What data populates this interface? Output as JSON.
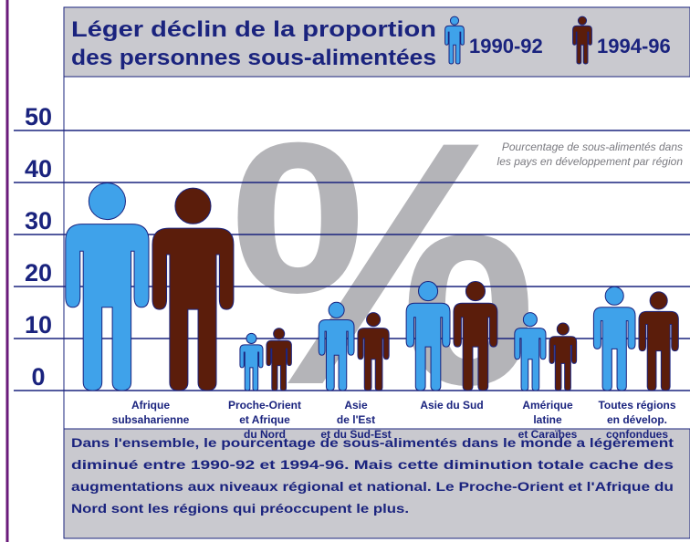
{
  "chart_data": {
    "type": "pictogram",
    "title_lines": [
      "Léger déclin de la proportion",
      "des personnes sous-alimentées"
    ],
    "watermark": "%",
    "annotation_lines": [
      "Pourcentage de sous-alimentés dans",
      "les pays en développement par région"
    ],
    "categories": [
      [
        "Afrique",
        "subsaharienne"
      ],
      [
        "Proche-Orient",
        "et Afrique",
        "du Nord"
      ],
      [
        "Asie",
        "de l'Est",
        "et du Sud-Est"
      ],
      [
        "Asie du Sud"
      ],
      [
        "Amérique",
        "latine",
        "et Caraïbes"
      ],
      [
        "Toutes régions",
        "en dévelop.",
        "confondues"
      ]
    ],
    "series": [
      {
        "name": "1990-92",
        "color": "#3fa2ea",
        "values": [
          40,
          11,
          17,
          21,
          15,
          20
        ]
      },
      {
        "name": "1994-96",
        "color": "#5b1d0b",
        "values": [
          39,
          12,
          15,
          21,
          13,
          19
        ]
      }
    ],
    "ylim": [
      0,
      50
    ],
    "yticks": [
      0,
      10,
      20,
      30,
      40,
      50
    ],
    "grid": true,
    "note_lines": [
      "Dans l'ensemble, le pourcentage de sous-alimentés dans le monde a légèrement",
      "diminué entre 1990-92 et 1994-96. Mais cette diminution totale cache des",
      "augmentations aux niveaux régional et national. Le Proche-Orient et l'Afrique du",
      "Nord sont les régions qui préoccupent le plus."
    ]
  }
}
